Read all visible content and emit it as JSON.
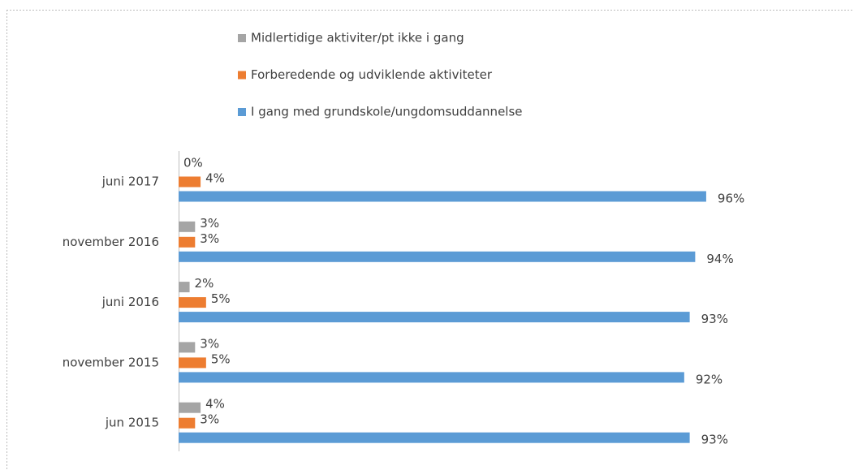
{
  "chart_data": {
    "type": "bar",
    "orientation": "horizontal",
    "categories": [
      "juni 2017",
      "november 2016",
      "juni 2016",
      "november 2015",
      "jun 2015"
    ],
    "series": [
      {
        "name": "Midlertidige aktiviter/pt ikke i gang",
        "color": "#a5a5a5",
        "values": [
          0,
          3,
          2,
          3,
          4
        ],
        "value_labels": [
          "0%",
          "3%",
          "2%",
          "3%",
          "4%"
        ]
      },
      {
        "name": "Forberedende og udviklende aktiviteter",
        "color": "#ed7d31",
        "values": [
          4,
          3,
          5,
          5,
          3
        ],
        "value_labels": [
          "4%",
          "3%",
          "5%",
          "5%",
          "3%"
        ]
      },
      {
        "name": "I gang med grundskole/ungdomsuddannelse",
        "color": "#5b9bd5",
        "values": [
          96,
          94,
          93,
          92,
          93
        ],
        "value_labels": [
          "96%",
          "94%",
          "93%",
          "92%",
          "93%"
        ]
      }
    ],
    "xlim": [
      0,
      100
    ]
  }
}
